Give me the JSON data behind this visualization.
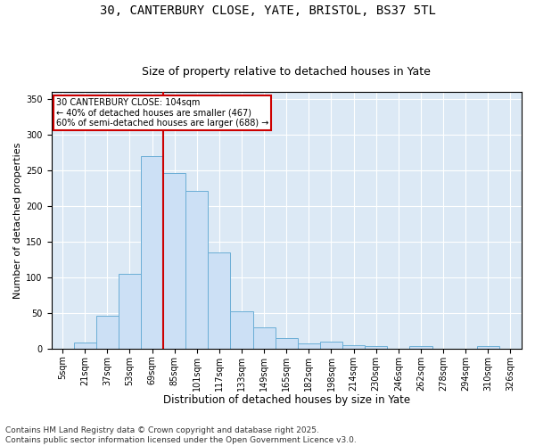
{
  "title_line1": "30, CANTERBURY CLOSE, YATE, BRISTOL, BS37 5TL",
  "title_line2": "Size of property relative to detached houses in Yate",
  "xlabel": "Distribution of detached houses by size in Yate",
  "ylabel": "Number of detached properties",
  "categories": [
    "5sqm",
    "21sqm",
    "37sqm",
    "53sqm",
    "69sqm",
    "85sqm",
    "101sqm",
    "117sqm",
    "133sqm",
    "149sqm",
    "165sqm",
    "182sqm",
    "198sqm",
    "214sqm",
    "230sqm",
    "246sqm",
    "262sqm",
    "278sqm",
    "294sqm",
    "310sqm",
    "326sqm"
  ],
  "values": [
    0,
    9,
    46,
    105,
    270,
    247,
    222,
    135,
    52,
    30,
    15,
    7,
    10,
    5,
    3,
    0,
    4,
    0,
    0,
    4,
    0
  ],
  "bar_color": "#cce0f5",
  "bar_edge_color": "#6baed6",
  "vline_color": "#cc0000",
  "annotation_title": "30 CANTERBURY CLOSE: 104sqm",
  "annotation_line1": "← 40% of detached houses are smaller (467)",
  "annotation_line2": "60% of semi-detached houses are larger (688) →",
  "annotation_box_color": "#ffffff",
  "annotation_box_edge": "#cc0000",
  "ylim": [
    0,
    360
  ],
  "yticks": [
    0,
    50,
    100,
    150,
    200,
    250,
    300,
    350
  ],
  "background_color": "#dce9f5",
  "footer": "Contains HM Land Registry data © Crown copyright and database right 2025.\nContains public sector information licensed under the Open Government Licence v3.0.",
  "title_fontsize": 10,
  "subtitle_fontsize": 9,
  "tick_fontsize": 7,
  "xlabel_fontsize": 8.5,
  "ylabel_fontsize": 8,
  "footer_fontsize": 6.5,
  "vline_xindex": 4.5
}
